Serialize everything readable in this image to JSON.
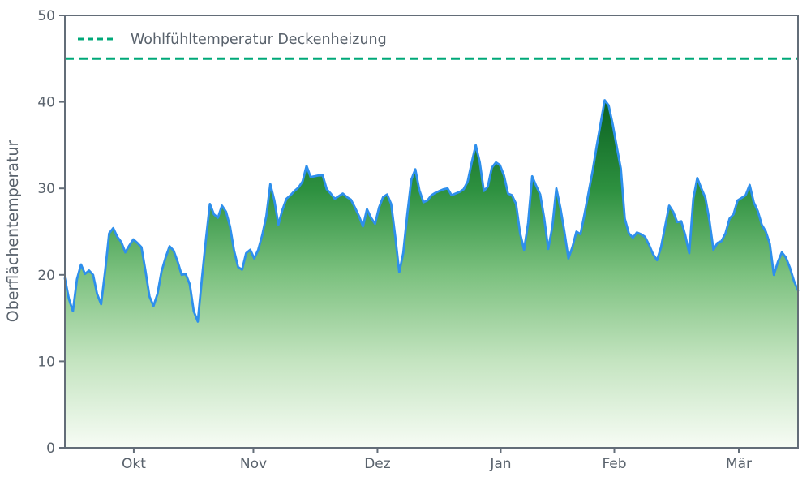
{
  "chart_data": {
    "type": "area",
    "title": "",
    "ylabel": "Oberflächentemperatur",
    "xlabel": "",
    "ylim": [
      0,
      50
    ],
    "grid": false,
    "legend_position": "upper left",
    "series_name": "Oberflächentemperatur",
    "x_unit": "day_index",
    "values": [
      19.6,
      17.2,
      15.8,
      19.5,
      21.2,
      20.1,
      20.5,
      20.0,
      17.8,
      16.6,
      20.5,
      24.8,
      25.4,
      24.4,
      23.8,
      22.6,
      23.4,
      24.1,
      23.7,
      23.2,
      20.5,
      17.5,
      16.4,
      17.8,
      20.4,
      22.0,
      23.3,
      22.8,
      21.5,
      20.0,
      20.1,
      18.9,
      15.8,
      14.6,
      19.5,
      24.0,
      28.2,
      27.0,
      26.6,
      28.0,
      27.3,
      25.6,
      22.8,
      20.9,
      20.6,
      22.5,
      22.9,
      21.9,
      22.9,
      24.6,
      26.8,
      30.5,
      28.6,
      25.8,
      27.5,
      28.8,
      29.2,
      29.7,
      30.1,
      30.8,
      32.6,
      31.3,
      31.4,
      31.5,
      31.5,
      29.9,
      29.4,
      28.8,
      29.1,
      29.4,
      29.0,
      28.7,
      27.8,
      26.8,
      25.6,
      27.6,
      26.6,
      25.9,
      27.8,
      29.0,
      29.3,
      28.2,
      24.5,
      20.3,
      22.5,
      27.0,
      31.0,
      32.2,
      29.8,
      28.4,
      28.6,
      29.2,
      29.5,
      29.7,
      29.9,
      30.0,
      29.2,
      29.4,
      29.6,
      29.9,
      30.8,
      33.0,
      35.0,
      33.0,
      29.7,
      30.2,
      32.4,
      33.0,
      32.7,
      31.5,
      29.4,
      29.2,
      28.2,
      24.8,
      22.9,
      26.0,
      31.4,
      30.3,
      29.3,
      26.5,
      23.0,
      25.5,
      30.0,
      27.8,
      25.0,
      21.9,
      23.2,
      25.0,
      24.7,
      27.0,
      29.5,
      32.0,
      34.8,
      37.5,
      40.2,
      39.6,
      37.4,
      34.8,
      32.3,
      26.5,
      24.8,
      24.3,
      24.9,
      24.7,
      24.4,
      23.5,
      22.4,
      21.7,
      23.2,
      25.6,
      28.0,
      27.3,
      26.1,
      26.2,
      24.6,
      22.5,
      28.8,
      31.2,
      30.0,
      28.9,
      26.3,
      22.9,
      23.7,
      23.9,
      24.8,
      26.5,
      27.0,
      28.6,
      28.9,
      29.2,
      30.4,
      28.4,
      27.4,
      25.8,
      25.0,
      23.6,
      20.0,
      21.5,
      22.6,
      22.0,
      20.8,
      19.3,
      18.2
    ],
    "x_ticks": [
      {
        "label": "Okt",
        "day": 17.1
      },
      {
        "label": "Nov",
        "day": 46.8
      },
      {
        "label": "Dez",
        "day": 77.6
      },
      {
        "label": "Jan",
        "day": 108.2
      },
      {
        "label": "Feb",
        "day": 136.4
      },
      {
        "label": "Mär",
        "day": 167.3
      }
    ],
    "y_ticks": [
      "0",
      "10",
      "20",
      "30",
      "40",
      "50"
    ],
    "threshold": {
      "label": "Wohlfühltemperatur Deckenheizung",
      "value": 45
    },
    "colors": {
      "line": "#2e8fec",
      "threshold": "#00a878",
      "axis": "#636d78",
      "text": "#59626c",
      "gradient_top": "#0a6121",
      "gradient_mid1": "#2e9140",
      "gradient_mid2": "#7cc17f",
      "gradient_mid3": "#c4e4c0",
      "gradient_bottom": "#f7fcf5"
    }
  }
}
